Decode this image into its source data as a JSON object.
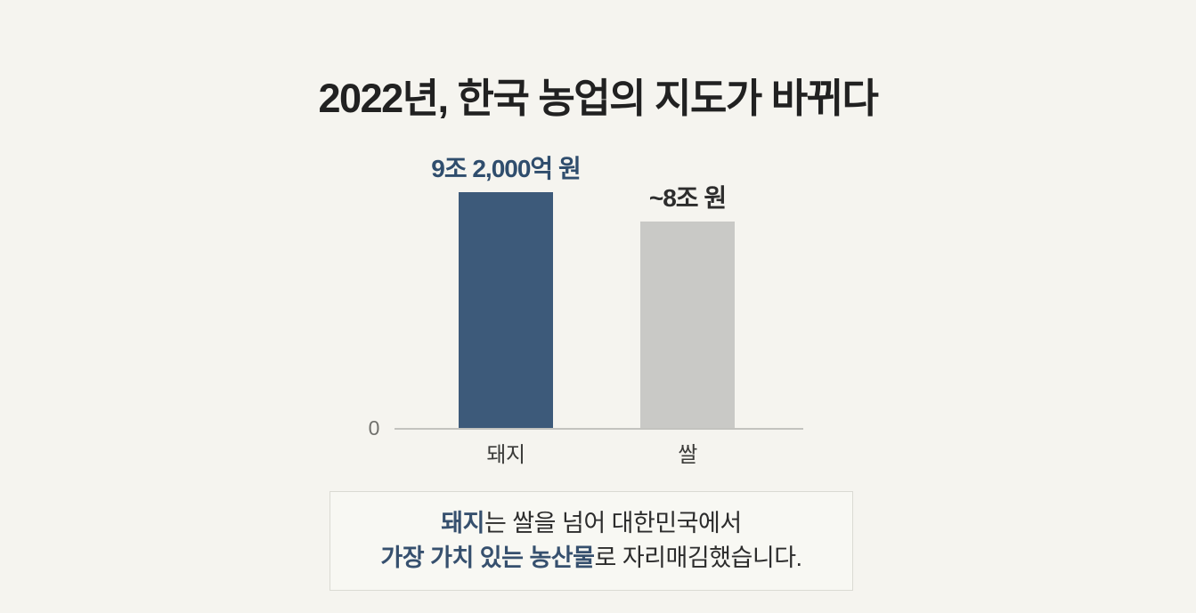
{
  "title": "2022년, 한국 농업의 지도가 바뀌다",
  "colors": {
    "background": "#f5f4ef",
    "pig_bar": "#3d5a7a",
    "rice_bar": "#c9c9c6",
    "pig_value_label": "#2f4d6d",
    "rice_value_label": "#2d2d2d",
    "axis_line": "#c3c3bf",
    "caption_accent": "#36506e",
    "caption_box_bg": "#f8f8f3",
    "caption_box_border": "#dadad3"
  },
  "chart_data": {
    "type": "bar",
    "title": "2022년, 한국 농업의 지도가 바뀌다",
    "categories": [
      "돼지",
      "쌀"
    ],
    "values": [
      9.2,
      8.05
    ],
    "unit": "조 원",
    "value_labels": [
      "9조 2,000억 원",
      "~8조 원"
    ],
    "colors": [
      "#3d5a7a",
      "#c9c9c6"
    ],
    "ylim": [
      0,
      9.2
    ],
    "yaxis_ticks": [
      "0"
    ],
    "grid": false,
    "legend": false
  },
  "chart": {
    "zero_label": "0",
    "bars": [
      {
        "category": "돼지",
        "value_label": "9조 2,000억 원"
      },
      {
        "category": "쌀",
        "value_label": "~8조 원"
      }
    ]
  },
  "caption": {
    "line1": [
      {
        "text": "돼지",
        "accent": true
      },
      {
        "text": "는 쌀을 넘어 대한민국에서",
        "accent": false
      }
    ],
    "line2": [
      {
        "text": "가장 가치 있는 농산물",
        "accent": true
      },
      {
        "text": "로 자리매김했습니다.",
        "accent": false
      }
    ]
  }
}
